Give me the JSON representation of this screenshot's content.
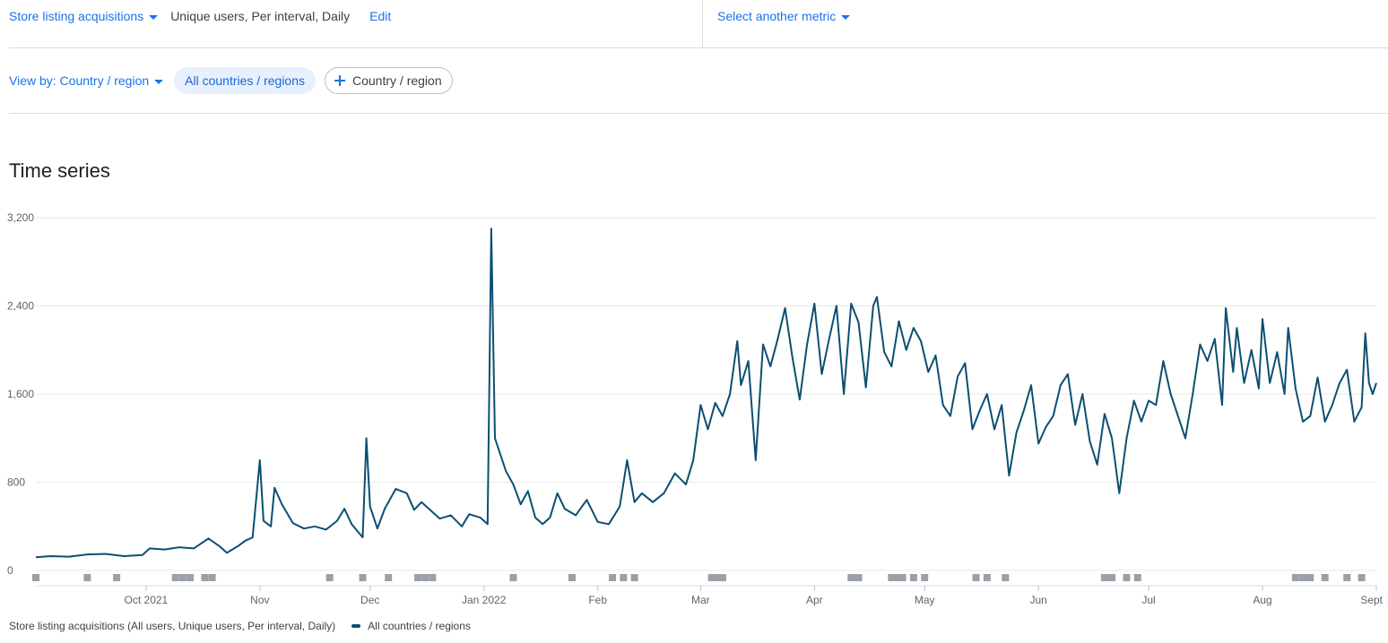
{
  "metric": {
    "selector_label": "Store listing acquisitions",
    "description": "Unique users, Per interval, Daily",
    "edit_label": "Edit",
    "other_metric_label": "Select another metric"
  },
  "filters": {
    "view_by_label": "View by: Country / region",
    "active_chip": "All countries / regions",
    "add_chip": "Country / region"
  },
  "section_title": "Time series",
  "legend": {
    "metric_text": "Store listing acquisitions (All users, Unique users, Per interval, Daily)",
    "series_label": "All countries / regions"
  },
  "colors": {
    "series": "#0b4f71",
    "accent": "#1a73e8",
    "grid": "#e8eaed",
    "event_marker": "#9aa0a6"
  },
  "chart_data": {
    "type": "line",
    "x_start": "2021-09-01",
    "x_end": "2022-09-01",
    "x_tick_labels": [
      "Oct 2021",
      "Nov",
      "Dec",
      "Jan 2022",
      "Feb",
      "Mar",
      "Apr",
      "May",
      "Jun",
      "Jul",
      "Aug",
      "Sept"
    ],
    "x_tick_dates": [
      "2021-10-01",
      "2021-11-01",
      "2021-12-01",
      "2022-01-01",
      "2022-02-01",
      "2022-03-01",
      "2022-04-01",
      "2022-05-01",
      "2022-06-01",
      "2022-07-01",
      "2022-08-01",
      "2022-09-01"
    ],
    "y_ticks": [
      0,
      800,
      1600,
      2400,
      3200
    ],
    "y_tick_labels": [
      "0",
      "800",
      "1,600",
      "2,400",
      "3,200"
    ],
    "ylim": [
      0,
      3200
    ],
    "grid": true,
    "legend_position": "bottom-left",
    "series": [
      {
        "name": "All countries / regions",
        "points": [
          [
            "2021-09-01",
            120
          ],
          [
            "2021-09-05",
            130
          ],
          [
            "2021-09-10",
            125
          ],
          [
            "2021-09-15",
            145
          ],
          [
            "2021-09-20",
            150
          ],
          [
            "2021-09-25",
            130
          ],
          [
            "2021-09-30",
            140
          ],
          [
            "2021-10-02",
            200
          ],
          [
            "2021-10-06",
            190
          ],
          [
            "2021-10-10",
            210
          ],
          [
            "2021-10-14",
            200
          ],
          [
            "2021-10-18",
            290
          ],
          [
            "2021-10-21",
            220
          ],
          [
            "2021-10-23",
            160
          ],
          [
            "2021-10-26",
            220
          ],
          [
            "2021-10-28",
            270
          ],
          [
            "2021-10-30",
            300
          ],
          [
            "2021-11-01",
            1000
          ],
          [
            "2021-11-02",
            450
          ],
          [
            "2021-11-04",
            400
          ],
          [
            "2021-11-05",
            750
          ],
          [
            "2021-11-07",
            600
          ],
          [
            "2021-11-10",
            430
          ],
          [
            "2021-11-13",
            380
          ],
          [
            "2021-11-16",
            400
          ],
          [
            "2021-11-19",
            370
          ],
          [
            "2021-11-22",
            450
          ],
          [
            "2021-11-24",
            560
          ],
          [
            "2021-11-26",
            420
          ],
          [
            "2021-11-29",
            300
          ],
          [
            "2021-11-30",
            1200
          ],
          [
            "2021-12-01",
            580
          ],
          [
            "2021-12-03",
            380
          ],
          [
            "2021-12-05",
            560
          ],
          [
            "2021-12-08",
            740
          ],
          [
            "2021-12-11",
            700
          ],
          [
            "2021-12-13",
            550
          ],
          [
            "2021-12-15",
            620
          ],
          [
            "2021-12-17",
            560
          ],
          [
            "2021-12-20",
            470
          ],
          [
            "2021-12-23",
            500
          ],
          [
            "2021-12-26",
            400
          ],
          [
            "2021-12-28",
            510
          ],
          [
            "2021-12-31",
            480
          ],
          [
            "2022-01-02",
            420
          ],
          [
            "2022-01-03",
            3100
          ],
          [
            "2022-01-04",
            1200
          ],
          [
            "2022-01-07",
            900
          ],
          [
            "2022-01-09",
            780
          ],
          [
            "2022-01-11",
            600
          ],
          [
            "2022-01-13",
            720
          ],
          [
            "2022-01-15",
            480
          ],
          [
            "2022-01-17",
            420
          ],
          [
            "2022-01-19",
            480
          ],
          [
            "2022-01-21",
            700
          ],
          [
            "2022-01-23",
            560
          ],
          [
            "2022-01-26",
            500
          ],
          [
            "2022-01-29",
            640
          ],
          [
            "2022-02-01",
            440
          ],
          [
            "2022-02-04",
            420
          ],
          [
            "2022-02-07",
            580
          ],
          [
            "2022-02-09",
            1000
          ],
          [
            "2022-02-11",
            620
          ],
          [
            "2022-02-13",
            700
          ],
          [
            "2022-02-16",
            620
          ],
          [
            "2022-02-19",
            700
          ],
          [
            "2022-02-22",
            880
          ],
          [
            "2022-02-25",
            780
          ],
          [
            "2022-02-27",
            1000
          ],
          [
            "2022-03-01",
            1500
          ],
          [
            "2022-03-03",
            1280
          ],
          [
            "2022-03-05",
            1520
          ],
          [
            "2022-03-07",
            1400
          ],
          [
            "2022-03-09",
            1600
          ],
          [
            "2022-03-11",
            2080
          ],
          [
            "2022-03-12",
            1680
          ],
          [
            "2022-03-14",
            1900
          ],
          [
            "2022-03-16",
            1000
          ],
          [
            "2022-03-18",
            2050
          ],
          [
            "2022-03-20",
            1850
          ],
          [
            "2022-03-22",
            2100
          ],
          [
            "2022-03-24",
            2380
          ],
          [
            "2022-03-26",
            1930
          ],
          [
            "2022-03-28",
            1550
          ],
          [
            "2022-03-30",
            2050
          ],
          [
            "2022-04-01",
            2420
          ],
          [
            "2022-04-03",
            1780
          ],
          [
            "2022-04-05",
            2100
          ],
          [
            "2022-04-07",
            2400
          ],
          [
            "2022-04-09",
            1600
          ],
          [
            "2022-04-11",
            2420
          ],
          [
            "2022-04-13",
            2250
          ],
          [
            "2022-04-15",
            1660
          ],
          [
            "2022-04-17",
            2400
          ],
          [
            "2022-04-18",
            2480
          ],
          [
            "2022-04-20",
            1980
          ],
          [
            "2022-04-22",
            1850
          ],
          [
            "2022-04-24",
            2260
          ],
          [
            "2022-04-26",
            2000
          ],
          [
            "2022-04-28",
            2200
          ],
          [
            "2022-04-30",
            2080
          ],
          [
            "2022-05-02",
            1800
          ],
          [
            "2022-05-04",
            1950
          ],
          [
            "2022-05-06",
            1500
          ],
          [
            "2022-05-08",
            1400
          ],
          [
            "2022-05-10",
            1760
          ],
          [
            "2022-05-12",
            1880
          ],
          [
            "2022-05-14",
            1280
          ],
          [
            "2022-05-16",
            1450
          ],
          [
            "2022-05-18",
            1600
          ],
          [
            "2022-05-20",
            1280
          ],
          [
            "2022-05-22",
            1500
          ],
          [
            "2022-05-24",
            860
          ],
          [
            "2022-05-26",
            1250
          ],
          [
            "2022-05-28",
            1450
          ],
          [
            "2022-05-30",
            1680
          ],
          [
            "2022-06-01",
            1150
          ],
          [
            "2022-06-03",
            1300
          ],
          [
            "2022-06-05",
            1400
          ],
          [
            "2022-06-07",
            1680
          ],
          [
            "2022-06-09",
            1780
          ],
          [
            "2022-06-11",
            1320
          ],
          [
            "2022-06-13",
            1600
          ],
          [
            "2022-06-15",
            1170
          ],
          [
            "2022-06-17",
            960
          ],
          [
            "2022-06-19",
            1420
          ],
          [
            "2022-06-21",
            1200
          ],
          [
            "2022-06-23",
            700
          ],
          [
            "2022-06-25",
            1200
          ],
          [
            "2022-06-27",
            1540
          ],
          [
            "2022-06-29",
            1350
          ],
          [
            "2022-07-01",
            1540
          ],
          [
            "2022-07-03",
            1500
          ],
          [
            "2022-07-05",
            1900
          ],
          [
            "2022-07-07",
            1600
          ],
          [
            "2022-07-09",
            1400
          ],
          [
            "2022-07-11",
            1200
          ],
          [
            "2022-07-13",
            1600
          ],
          [
            "2022-07-15",
            2050
          ],
          [
            "2022-07-17",
            1900
          ],
          [
            "2022-07-19",
            2100
          ],
          [
            "2022-07-21",
            1500
          ],
          [
            "2022-07-22",
            2380
          ],
          [
            "2022-07-24",
            1800
          ],
          [
            "2022-07-25",
            2200
          ],
          [
            "2022-07-27",
            1700
          ],
          [
            "2022-07-29",
            2000
          ],
          [
            "2022-07-31",
            1650
          ],
          [
            "2022-08-01",
            2280
          ],
          [
            "2022-08-03",
            1700
          ],
          [
            "2022-08-05",
            1980
          ],
          [
            "2022-08-07",
            1600
          ],
          [
            "2022-08-08",
            2200
          ],
          [
            "2022-08-10",
            1650
          ],
          [
            "2022-08-12",
            1350
          ],
          [
            "2022-08-14",
            1400
          ],
          [
            "2022-08-16",
            1750
          ],
          [
            "2022-08-18",
            1350
          ],
          [
            "2022-08-20",
            1500
          ],
          [
            "2022-08-22",
            1700
          ],
          [
            "2022-08-24",
            1820
          ],
          [
            "2022-08-26",
            1350
          ],
          [
            "2022-08-28",
            1480
          ],
          [
            "2022-08-29",
            2150
          ],
          [
            "2022-08-30",
            1700
          ],
          [
            "2022-08-31",
            1600
          ],
          [
            "2022-09-01",
            1700
          ]
        ]
      }
    ],
    "event_markers": [
      "2021-09-01",
      "2021-09-15",
      "2021-09-23",
      "2021-10-09",
      "2021-10-11",
      "2021-10-13",
      "2021-10-17",
      "2021-10-19",
      "2021-11-20",
      "2021-11-29",
      "2021-12-06",
      "2021-12-14",
      "2021-12-16",
      "2021-12-18",
      "2022-01-09",
      "2022-01-25",
      "2022-02-05",
      "2022-02-08",
      "2022-02-11",
      "2022-03-04",
      "2022-03-05",
      "2022-03-06",
      "2022-03-07",
      "2022-04-11",
      "2022-04-12",
      "2022-04-13",
      "2022-04-22",
      "2022-04-23",
      "2022-04-24",
      "2022-04-25",
      "2022-04-28",
      "2022-05-01",
      "2022-05-15",
      "2022-05-18",
      "2022-05-23",
      "2022-06-19",
      "2022-06-20",
      "2022-06-21",
      "2022-06-25",
      "2022-06-28",
      "2022-08-10",
      "2022-08-12",
      "2022-08-13",
      "2022-08-14",
      "2022-08-18",
      "2022-08-24",
      "2022-08-28"
    ]
  }
}
